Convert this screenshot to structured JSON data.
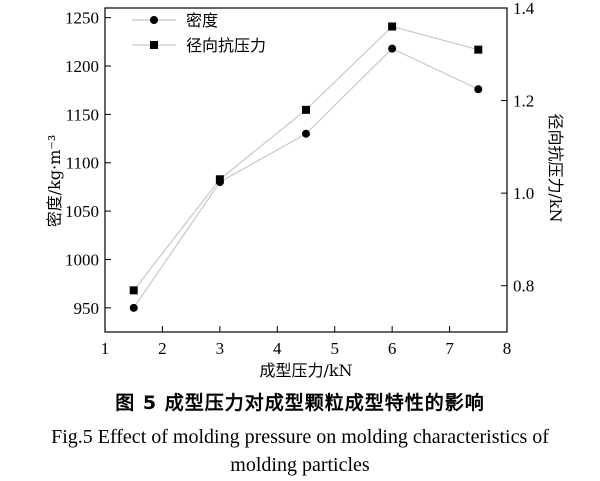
{
  "chart_data": {
    "type": "line",
    "x": [
      1.5,
      3,
      4.5,
      6,
      7.5
    ],
    "xlabel": "成型压力/kN",
    "xlim": [
      1,
      8
    ],
    "xticks": [
      1,
      2,
      3,
      4,
      5,
      6,
      7,
      8
    ],
    "ylabel_left": "密度/kg·m⁻³",
    "ylim_left": [
      925,
      1260
    ],
    "yticks_left": [
      950,
      1000,
      1050,
      1100,
      1150,
      1200,
      1250
    ],
    "ylabel_right": "径向抗压力/kN",
    "ylim_right": [
      0.7,
      1.4
    ],
    "yticks_right": [
      "0.8",
      "1.0",
      "1.2",
      "1.4"
    ],
    "yticks_right_values": [
      0.8,
      1.0,
      1.2,
      1.4
    ],
    "series": [
      {
        "name": "密度",
        "axis": "left",
        "marker": "circle",
        "values": [
          950,
          1080,
          1130,
          1218,
          1176
        ]
      },
      {
        "name": "径向抗压力",
        "axis": "right",
        "marker": "square",
        "values": [
          0.79,
          1.03,
          1.18,
          1.36,
          1.31
        ]
      }
    ],
    "legend_position": "top-left",
    "line_color": "#c8c8c8",
    "marker_color": "#000000"
  },
  "caption": {
    "cn": "图 5   成型压力对成型颗粒成型特性的影响",
    "en_line1": "Fig.5 Effect of molding pressure on molding characteristics of",
    "en_line2": "molding particles"
  }
}
